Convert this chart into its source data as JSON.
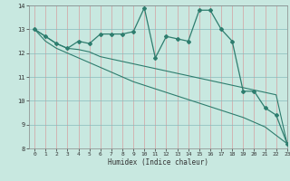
{
  "xlabel": "Humidex (Indice chaleur)",
  "background_color": "#c8e8e0",
  "grid_color_v": "#d4a0a0",
  "grid_color_h": "#88bbbb",
  "line_color": "#2e7d6e",
  "x_values": [
    0,
    1,
    2,
    3,
    4,
    5,
    6,
    7,
    8,
    9,
    10,
    11,
    12,
    13,
    14,
    15,
    16,
    17,
    18,
    19,
    20,
    21,
    22,
    23
  ],
  "series1": [
    13.0,
    12.7,
    12.4,
    12.2,
    12.5,
    12.4,
    12.8,
    12.8,
    12.8,
    12.9,
    13.9,
    11.8,
    12.7,
    12.6,
    12.5,
    13.8,
    13.8,
    13.0,
    12.5,
    10.4,
    10.4,
    9.7,
    9.4,
    8.2
  ],
  "series2": [
    13.0,
    12.7,
    12.4,
    12.2,
    12.15,
    12.05,
    11.85,
    11.75,
    11.65,
    11.55,
    11.45,
    11.35,
    11.25,
    11.15,
    11.05,
    10.95,
    10.85,
    10.75,
    10.65,
    10.55,
    10.45,
    10.35,
    10.25,
    8.2
  ],
  "series3": [
    13.0,
    12.5,
    12.2,
    12.0,
    11.8,
    11.6,
    11.4,
    11.2,
    11.0,
    10.8,
    10.65,
    10.5,
    10.35,
    10.2,
    10.05,
    9.9,
    9.75,
    9.6,
    9.45,
    9.3,
    9.1,
    8.9,
    8.55,
    8.2
  ],
  "ylim": [
    8,
    14
  ],
  "xlim": [
    -0.5,
    23
  ],
  "yticks": [
    8,
    9,
    10,
    11,
    12,
    13,
    14
  ],
  "xticks": [
    0,
    1,
    2,
    3,
    4,
    5,
    6,
    7,
    8,
    9,
    10,
    11,
    12,
    13,
    14,
    15,
    16,
    17,
    18,
    19,
    20,
    21,
    22,
    23
  ]
}
